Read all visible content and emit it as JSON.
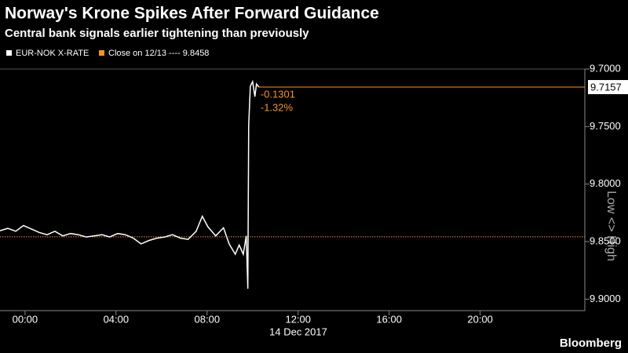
{
  "chart_data": {
    "type": "line",
    "title": "Norway's Krone Spikes After Forward Guidance",
    "subtitle": "Central bank signals earlier tightening than previously",
    "x": [
      -1.1,
      -0.76,
      -0.41,
      -0.07,
      0.28,
      0.62,
      0.97,
      1.31,
      1.66,
      2.0,
      2.34,
      2.69,
      3.03,
      3.38,
      3.72,
      4.07,
      4.41,
      4.76,
      5.1,
      5.45,
      5.79,
      6.14,
      6.48,
      6.83,
      7.17,
      7.52,
      7.79,
      8.03,
      8.38,
      8.72,
      8.97,
      9.24,
      9.41,
      9.59,
      9.72,
      9.79,
      9.83,
      9.9,
      10.0,
      10.1,
      10.17,
      10.28
    ],
    "series": [
      {
        "name": "EUR-NOK X-RATE",
        "color": "#ffffff",
        "values": [
          9.8406,
          9.8385,
          9.841,
          9.836,
          9.839,
          9.842,
          9.844,
          9.841,
          9.845,
          9.843,
          9.844,
          9.846,
          9.845,
          9.844,
          9.846,
          9.843,
          9.844,
          9.847,
          9.852,
          9.849,
          9.847,
          9.846,
          9.844,
          9.847,
          9.848,
          9.841,
          9.828,
          9.837,
          9.845,
          9.838,
          9.852,
          9.861,
          9.853,
          9.861,
          9.845,
          9.891,
          9.749,
          9.715,
          9.711,
          9.724,
          9.713,
          9.7157
        ]
      }
    ],
    "reference": {
      "label": "Close on 12/13 ----",
      "value": 9.8458,
      "color": "#f7941d"
    },
    "annotations": [
      "-0.1301",
      "-1.32%"
    ],
    "axis_label": "Low <> High",
    "date_label": "14 Dec 2017",
    "source": "Bloomberg",
    "xlim": [
      -1.1,
      24.6
    ],
    "xticks": [
      {
        "value": 0,
        "label": "00:00"
      },
      {
        "value": 4,
        "label": "04:00"
      },
      {
        "value": 8,
        "label": "08:00"
      },
      {
        "value": 12,
        "label": "12:00"
      },
      {
        "value": 16,
        "label": "16:00"
      },
      {
        "value": 20,
        "label": "20:00"
      }
    ],
    "ylim": [
      9.7,
      9.91
    ],
    "y_inverted": true,
    "yticks": [
      {
        "value": 9.7,
        "label": "9.7000"
      },
      {
        "value": 9.75,
        "label": "9.7500"
      },
      {
        "value": 9.8,
        "label": "9.8000"
      },
      {
        "value": 9.85,
        "label": "9.8500"
      },
      {
        "value": 9.9,
        "label": "9.9000"
      }
    ]
  }
}
